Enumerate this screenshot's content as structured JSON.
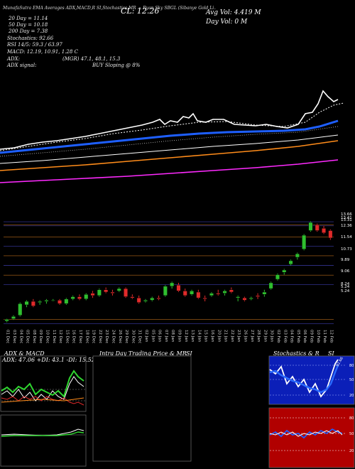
{
  "header": {
    "top_line": "MunafaSutra  EMA Averages ADX,MACD,R  SI,Stochastics,MR  ... Ryan Sky SBGL  (Sibanye Gold Li... tion)  ... 4 Views  munafasutra.com",
    "ema20": "20 Day = 11.14",
    "ema50": "50 Day = 10.18",
    "ema200": "200 Day = 7.38",
    "stochastics": "Stochastics: 92.66",
    "rsi": "RSI 14/5: 59.3 / 63.97",
    "macd": "MACD: 12.19, 10.91, 1.28  C",
    "adx": "ADX:",
    "adx_values": "(MGR) 47.1, 48.1, 15.3",
    "adx_signal_label": "ADX signal:",
    "adx_signal_value": "BUY Sloping @ 8%",
    "close": "CL: 12.26",
    "avg_vol": "Avg Vol: 4.419 M",
    "day_vol": "Day Vol: 0  M"
  },
  "price_axis_labels": [
    "13.66",
    "13.41",
    "13.31",
    "12.36",
    "11.54",
    "10.73",
    "9.89",
    "9.06",
    "8.24",
    "5.24",
    "5.24"
  ],
  "date_labels": [
    "01 Dec",
    "03 Dec",
    "04 Dec",
    "05 Dec",
    "08 Dec",
    "09 Dec",
    "10 Dec",
    "11 Dec",
    "12 Dec",
    "15 Dec",
    "16 Dec",
    "17 Dec",
    "18 Dec",
    "19 Dec",
    "22 Dec",
    "23 Dec",
    "24 Dec",
    "26 Dec",
    "29 Dec",
    "30 Dec",
    "31 Dec",
    "02 Jan",
    "05 Jan",
    "06 Jan",
    "07 Jan",
    "08 Jan",
    "09 Jan",
    "12 Jan",
    "13 Jan",
    "14 Jan",
    "15 Jan",
    "16 Jan",
    "20 Jan",
    "21 Jan",
    "22 Jan",
    "23 Jan",
    "26 Jan",
    "27 Jan",
    "28 Jan",
    "29 Jan",
    "30 Jan",
    "02 Feb",
    "03 Feb",
    "04 Feb",
    "05 Feb",
    "06 Feb",
    "09 Feb",
    "10 Feb",
    "11 Feb",
    "12 Feb"
  ],
  "panels": {
    "adx_macd_title": "ADX  & MACD",
    "adx_readout": "ADX: 47.06  +DI: 43.1 -DI: 15.52",
    "intraday_title": "Intra Day Trading Price  & MR",
    "intraday_si": "SI",
    "stoch_title": "Stochastics & R",
    "stoch_si": "SI",
    "stoch_ticks": [
      "80",
      "50",
      "20"
    ],
    "rsi_ticks": [
      "80",
      "50",
      "20"
    ]
  },
  "colors": {
    "up": "#2fbf2f",
    "down": "#e02a2a",
    "ema_blue": "#1e5fff",
    "ema_orange": "#ff8c1a",
    "ema_magenta": "#ff2aff",
    "price_line": "#ffffff"
  },
  "chart_data": {
    "type": "candlestick",
    "candles": [
      {
        "o": 5.1,
        "h": 5.3,
        "l": 5.0,
        "c": 5.25
      },
      {
        "o": 5.3,
        "h": 5.6,
        "l": 5.2,
        "c": 5.5
      },
      {
        "o": 5.6,
        "h": 6.7,
        "l": 5.5,
        "c": 6.6
      },
      {
        "o": 6.5,
        "h": 6.9,
        "l": 6.3,
        "c": 6.8
      },
      {
        "o": 6.8,
        "h": 7.0,
        "l": 6.3,
        "c": 6.4
      },
      {
        "o": 6.7,
        "h": 6.9,
        "l": 6.5,
        "c": 6.8
      },
      {
        "o": 6.8,
        "h": 7.0,
        "l": 6.6,
        "c": 6.9
      },
      {
        "o": 6.9,
        "h": 7.0,
        "l": 6.8,
        "c": 6.9
      },
      {
        "o": 6.9,
        "h": 7.0,
        "l": 6.5,
        "c": 6.6
      },
      {
        "o": 6.6,
        "h": 7.1,
        "l": 6.5,
        "c": 7.0
      },
      {
        "o": 7.0,
        "h": 7.3,
        "l": 6.9,
        "c": 7.2
      },
      {
        "o": 7.2,
        "h": 7.4,
        "l": 6.9,
        "c": 7.0
      },
      {
        "o": 7.0,
        "h": 7.5,
        "l": 6.9,
        "c": 7.4
      },
      {
        "o": 7.5,
        "h": 7.7,
        "l": 7.1,
        "c": 7.3
      },
      {
        "o": 7.3,
        "h": 7.9,
        "l": 7.2,
        "c": 7.8
      },
      {
        "o": 7.8,
        "h": 8.0,
        "l": 7.5,
        "c": 7.6
      },
      {
        "o": 7.6,
        "h": 7.8,
        "l": 7.3,
        "c": 7.5
      },
      {
        "o": 7.7,
        "h": 8.0,
        "l": 7.6,
        "c": 7.9
      },
      {
        "o": 7.9,
        "h": 8.0,
        "l": 7.1,
        "c": 7.2
      },
      {
        "o": 7.2,
        "h": 7.4,
        "l": 7.0,
        "c": 7.1
      },
      {
        "o": 7.1,
        "h": 7.3,
        "l": 6.6,
        "c": 6.7
      },
      {
        "o": 6.8,
        "h": 7.0,
        "l": 6.7,
        "c": 6.9
      },
      {
        "o": 6.9,
        "h": 7.2,
        "l": 6.8,
        "c": 7.1
      },
      {
        "o": 7.1,
        "h": 7.3,
        "l": 6.9,
        "c": 7.0
      },
      {
        "o": 7.3,
        "h": 8.2,
        "l": 7.2,
        "c": 8.1
      },
      {
        "o": 8.1,
        "h": 8.5,
        "l": 7.9,
        "c": 8.4
      },
      {
        "o": 8.2,
        "h": 8.4,
        "l": 7.6,
        "c": 7.7
      },
      {
        "o": 7.7,
        "h": 7.9,
        "l": 7.2,
        "c": 7.3
      },
      {
        "o": 7.4,
        "h": 7.8,
        "l": 7.3,
        "c": 7.7
      },
      {
        "o": 7.6,
        "h": 7.8,
        "l": 7.0,
        "c": 7.1
      },
      {
        "o": 7.1,
        "h": 7.3,
        "l": 6.8,
        "c": 7.0
      },
      {
        "o": 7.3,
        "h": 7.6,
        "l": 7.2,
        "c": 7.5
      },
      {
        "o": 7.5,
        "h": 7.8,
        "l": 7.3,
        "c": 7.4
      },
      {
        "o": 7.5,
        "h": 7.8,
        "l": 7.3,
        "c": 7.7
      },
      {
        "o": 7.8,
        "h": 8.0,
        "l": 7.5,
        "c": 7.6
      },
      {
        "o": 7.1,
        "h": 7.3,
        "l": 6.8,
        "c": 7.2
      },
      {
        "o": 7.1,
        "h": 7.2,
        "l": 6.8,
        "c": 6.9
      },
      {
        "o": 7.0,
        "h": 7.2,
        "l": 6.9,
        "c": 7.1
      },
      {
        "o": 7.3,
        "h": 7.5,
        "l": 7.0,
        "c": 7.2
      },
      {
        "o": 7.4,
        "h": 7.8,
        "l": 7.2,
        "c": 7.6
      },
      {
        "o": 7.9,
        "h": 8.5,
        "l": 7.8,
        "c": 8.4
      },
      {
        "o": 8.7,
        "h": 9.2,
        "l": 8.6,
        "c": 9.1
      },
      {
        "o": 9.3,
        "h": 9.6,
        "l": 9.1,
        "c": 9.5
      },
      {
        "o": 10.0,
        "h": 10.4,
        "l": 9.9,
        "c": 10.3
      },
      {
        "o": 10.6,
        "h": 11.0,
        "l": 10.4,
        "c": 10.9
      },
      {
        "o": 11.3,
        "h": 12.6,
        "l": 11.2,
        "c": 12.5
      },
      {
        "o": 12.9,
        "h": 13.7,
        "l": 12.8,
        "c": 13.6
      },
      {
        "o": 13.4,
        "h": 13.5,
        "l": 12.8,
        "c": 12.9
      },
      {
        "o": 13.1,
        "h": 13.3,
        "l": 12.6,
        "c": 12.7
      },
      {
        "o": 12.9,
        "h": 13.0,
        "l": 12.1,
        "c": 12.26
      }
    ],
    "ylim": [
      4.6,
      14.4
    ]
  }
}
